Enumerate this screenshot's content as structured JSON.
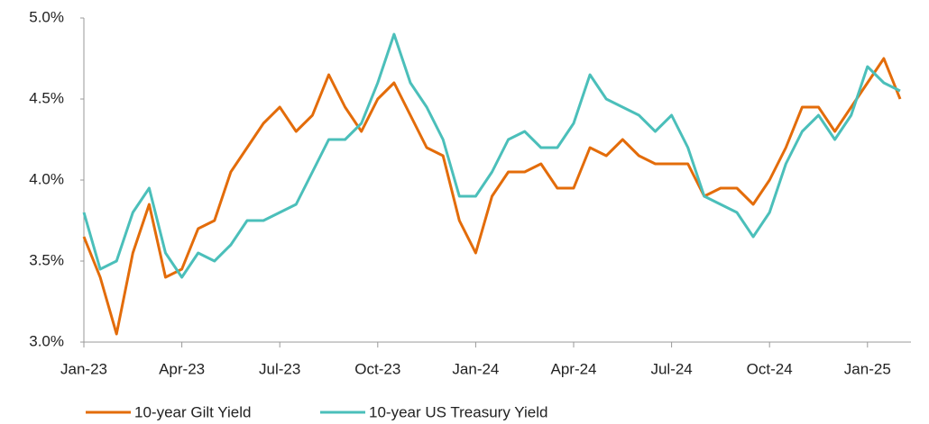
{
  "chart_data": {
    "type": "line",
    "categories": [
      "Jan-23",
      null,
      null,
      null,
      null,
      null,
      "Apr-23",
      null,
      null,
      null,
      null,
      null,
      "Jul-23",
      null,
      null,
      null,
      null,
      null,
      "Oct-23",
      null,
      null,
      null,
      null,
      null,
      "Jan-24",
      null,
      null,
      null,
      null,
      null,
      "Apr-24",
      null,
      null,
      null,
      null,
      null,
      "Jul-24",
      null,
      null,
      null,
      null,
      null,
      "Oct-24",
      null,
      null,
      null,
      null,
      null,
      "Jan-25",
      null,
      null
    ],
    "series": [
      {
        "name": "10-year Gilt Yield",
        "color": "#e36c0a",
        "values": [
          3.65,
          3.4,
          3.05,
          3.55,
          3.85,
          3.4,
          3.45,
          3.7,
          3.75,
          4.05,
          4.2,
          4.35,
          4.45,
          4.3,
          4.4,
          4.65,
          4.45,
          4.3,
          4.5,
          4.6,
          4.4,
          4.2,
          4.15,
          3.75,
          3.55,
          3.9,
          4.05,
          4.05,
          4.1,
          3.95,
          3.95,
          4.2,
          4.15,
          4.25,
          4.15,
          4.1,
          4.1,
          4.1,
          3.9,
          3.95,
          3.95,
          3.85,
          4.0,
          4.2,
          4.45,
          4.45,
          4.3,
          4.45,
          4.6,
          4.75,
          4.5
        ]
      },
      {
        "name": "10-year US Treasury Yield",
        "color": "#4bbfba",
        "values": [
          3.8,
          3.45,
          3.5,
          3.8,
          3.95,
          3.55,
          3.4,
          3.55,
          3.5,
          3.6,
          3.75,
          3.75,
          3.8,
          3.85,
          4.05,
          4.25,
          4.25,
          4.35,
          4.6,
          4.9,
          4.6,
          4.45,
          4.25,
          3.9,
          3.9,
          4.05,
          4.25,
          4.3,
          4.2,
          4.2,
          4.35,
          4.65,
          4.5,
          4.45,
          4.4,
          4.3,
          4.4,
          4.2,
          3.9,
          3.85,
          3.8,
          3.65,
          3.8,
          4.1,
          4.3,
          4.4,
          4.25,
          4.4,
          4.7,
          4.6,
          4.55
        ]
      }
    ],
    "ylim": [
      3,
      5
    ],
    "yticks": [
      {
        "value": 3,
        "label": "3.0%"
      },
      {
        "value": 3.5,
        "label": "3.5%"
      },
      {
        "value": 4,
        "label": "4.0%"
      },
      {
        "value": 4.5,
        "label": "4.5%"
      },
      {
        "value": 5,
        "label": "5.0%"
      }
    ],
    "grid": false,
    "legend": "bottom"
  }
}
